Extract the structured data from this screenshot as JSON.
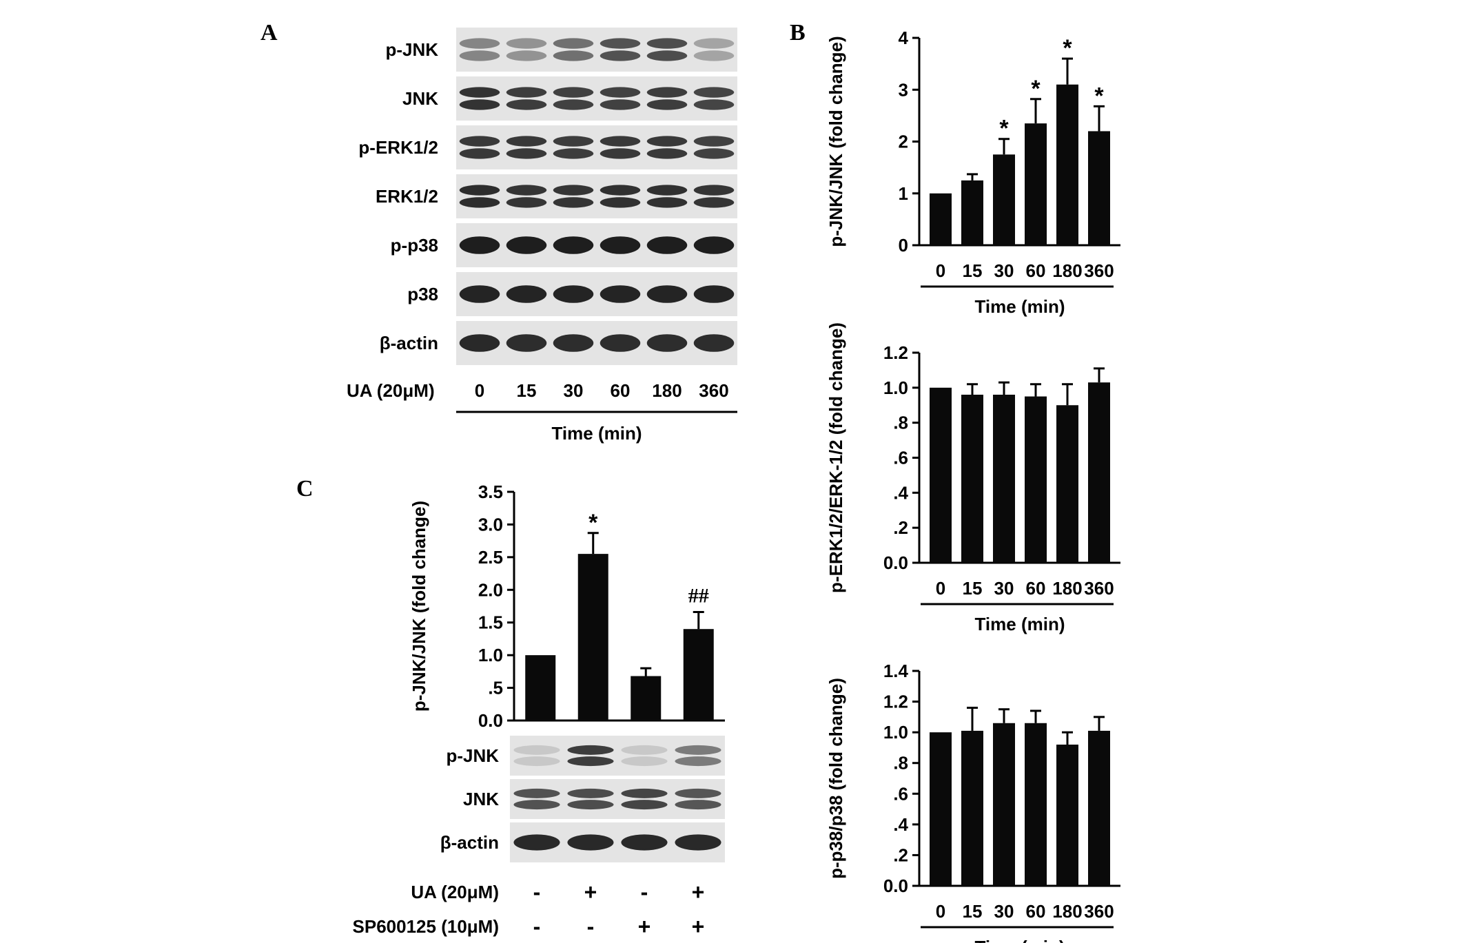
{
  "panels": {
    "a": {
      "letter": "A",
      "rows": [
        "p-JNK",
        "JNK",
        "p-ERK1/2",
        "ERK1/2",
        "p-p38",
        "p38",
        "β-actin"
      ],
      "treatment_label": "UA (20μM)",
      "timepoints": [
        "0",
        "15",
        "30",
        "60",
        "180",
        "360"
      ],
      "xlabel": "Time (min)"
    },
    "b": {
      "letter": "B"
    },
    "c": {
      "letter": "C",
      "rows": [
        "p-JNK",
        "JNK",
        "β-actin"
      ],
      "conditions": [
        {
          "label": "UA (20μM)",
          "marks": [
            "-",
            "+",
            "-",
            "+"
          ]
        },
        {
          "label": "SP600125 (10μM)",
          "marks": [
            "-",
            "-",
            "+",
            "+"
          ]
        }
      ]
    }
  },
  "blots": {
    "a": {
      "p-JNK": [
        0.45,
        0.38,
        0.55,
        0.7,
        0.72,
        0.3
      ],
      "JNK": [
        0.85,
        0.8,
        0.78,
        0.78,
        0.8,
        0.76
      ],
      "p-ERK1/2": [
        0.82,
        0.82,
        0.8,
        0.82,
        0.82,
        0.78
      ],
      "ERK1/2": [
        0.88,
        0.84,
        0.84,
        0.86,
        0.86,
        0.84
      ],
      "p-p38": [
        0.95,
        0.95,
        0.95,
        0.95,
        0.95,
        0.95
      ],
      "p38": [
        0.92,
        0.92,
        0.92,
        0.92,
        0.92,
        0.92
      ],
      "β-actin": [
        0.9,
        0.88,
        0.88,
        0.88,
        0.88,
        0.88
      ]
    },
    "c": {
      "p-JNK": [
        0.12,
        0.8,
        0.12,
        0.5
      ],
      "JNK": [
        0.7,
        0.72,
        0.76,
        0.68
      ],
      "β-actin": [
        0.9,
        0.9,
        0.9,
        0.9
      ]
    }
  },
  "chart_data": [
    {
      "type": "bar",
      "panel": "B",
      "categories": [
        "0",
        "15",
        "30",
        "60",
        "180",
        "360"
      ],
      "values": [
        1.0,
        1.25,
        1.75,
        2.35,
        3.1,
        2.2
      ],
      "errors": [
        0,
        0.12,
        0.3,
        0.47,
        0.5,
        0.48
      ],
      "annotations": [
        "",
        "",
        "*",
        "*",
        "*",
        "*"
      ],
      "xlabel": "Time (min)",
      "ylabel": "p-JNK/JNK  (fold change)",
      "ylim": [
        0,
        4
      ],
      "yticks": [
        "0",
        "1",
        "2",
        "3",
        "4"
      ]
    },
    {
      "type": "bar",
      "panel": "B",
      "categories": [
        "0",
        "15",
        "30",
        "60",
        "180",
        "360"
      ],
      "values": [
        1.0,
        0.96,
        0.96,
        0.95,
        0.9,
        1.03
      ],
      "errors": [
        0,
        0.06,
        0.07,
        0.07,
        0.12,
        0.08
      ],
      "annotations": [
        "",
        "",
        "",
        "",
        "",
        ""
      ],
      "xlabel": "Time (min)",
      "ylabel": "p-ERK1/2/ERK-1/2 (fold change)",
      "ylim": [
        0,
        1.2
      ],
      "yticks": [
        "0.0",
        ".2",
        ".4",
        ".6",
        ".8",
        "1.0",
        "1.2"
      ]
    },
    {
      "type": "bar",
      "panel": "B",
      "categories": [
        "0",
        "15",
        "30",
        "60",
        "180",
        "360"
      ],
      "values": [
        1.0,
        1.01,
        1.06,
        1.06,
        0.92,
        1.01
      ],
      "errors": [
        0,
        0.15,
        0.09,
        0.08,
        0.08,
        0.09
      ],
      "annotations": [
        "",
        "",
        "",
        "",
        "",
        ""
      ],
      "xlabel": "Time (min)",
      "ylabel": "p-p38/p38 (fold change)",
      "ylim": [
        0,
        1.4
      ],
      "yticks": [
        "0.0",
        ".2",
        ".4",
        ".6",
        ".8",
        "1.0",
        "1.2",
        "1.4"
      ]
    },
    {
      "type": "bar",
      "panel": "C",
      "categories": [
        "-/-",
        "+/-",
        "-/+",
        "+/+"
      ],
      "values": [
        1.0,
        2.55,
        0.68,
        1.4
      ],
      "errors": [
        0,
        0.32,
        0.12,
        0.26
      ],
      "annotations": [
        "",
        "*",
        "",
        "##"
      ],
      "xlabel": "",
      "ylabel": "p-JNK/JNK (fold change)",
      "ylim": [
        0,
        3.5
      ],
      "yticks": [
        "0.0",
        ".5",
        "1.0",
        "1.5",
        "2.0",
        "2.5",
        "3.0",
        "3.5"
      ]
    }
  ]
}
